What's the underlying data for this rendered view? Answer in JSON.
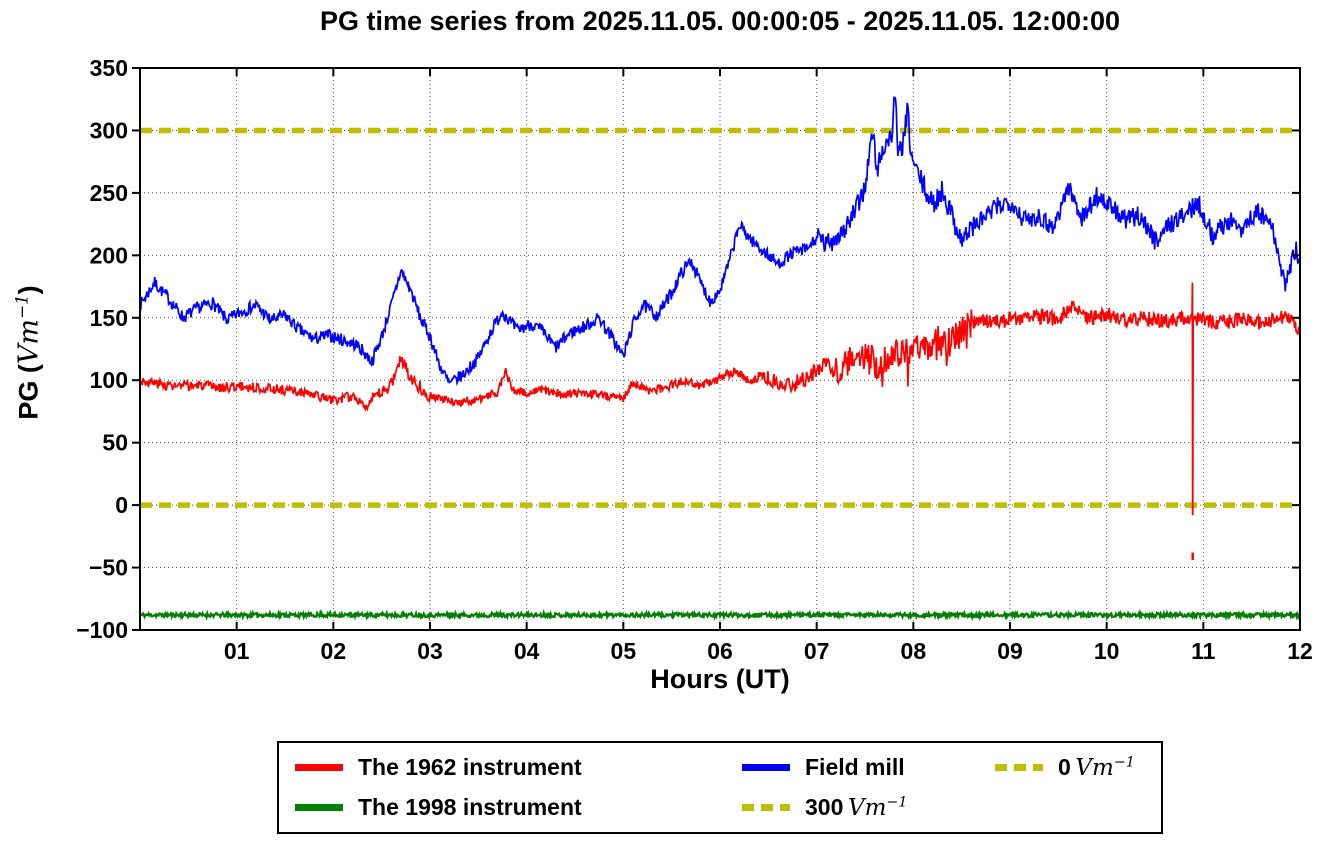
{
  "title": "PG time series from 2025.11.05. 00:00:05 - 2025.11.05. 12:00:00",
  "axes": {
    "xlabel": "Hours (UT)",
    "ylabel_prefix": "PG (",
    "ylabel_unit": "Vm",
    "ylabel_sup": "−1",
    "ylabel_suffix": ")",
    "xtick_labels": [
      "01",
      "02",
      "03",
      "04",
      "05",
      "06",
      "07",
      "08",
      "09",
      "10",
      "11",
      "12"
    ],
    "xtick_values": [
      1,
      2,
      3,
      4,
      5,
      6,
      7,
      8,
      9,
      10,
      11,
      12
    ],
    "ytick_labels": [
      "350",
      "300",
      "250",
      "200",
      "150",
      "100",
      "50",
      "0",
      "−50",
      "−100"
    ],
    "ytick_values": [
      350,
      300,
      250,
      200,
      150,
      100,
      50,
      0,
      -50,
      -100
    ]
  },
  "legend": {
    "entries": [
      {
        "label": "The 1962 instrument",
        "color": "#ff0000",
        "dash": false
      },
      {
        "label": "Field mill",
        "color": "#0000ff",
        "dash": false
      },
      {
        "label_num": "0",
        "label_unit": "Vm",
        "label_sup": "−1",
        "color": "#bfbf00",
        "dash": true
      },
      {
        "label": "The 1998 instrument",
        "color": "#008000",
        "dash": false
      },
      {
        "label_num": "300",
        "label_unit": "Vm",
        "label_sup": "−1",
        "color": "#bfbf00",
        "dash": true
      }
    ]
  },
  "chart_data": {
    "type": "line",
    "title": "PG time series from 2025.11.05. 00:00:05 - 2025.11.05. 12:00:00",
    "xlabel": "Hours (UT)",
    "ylabel": "PG (Vm^-1)",
    "xlim": [
      0,
      12
    ],
    "ylim": [
      -100,
      350
    ],
    "grid": true,
    "legend_position": "below",
    "ref_lines": [
      {
        "label": "300 Vm^-1",
        "value": 300,
        "color": "#bfbf00",
        "width": 5.5,
        "dash": [
          12,
          7
        ]
      },
      {
        "label": "0 Vm^-1",
        "value": 0,
        "color": "#bfbf00",
        "width": 5.5,
        "dash": [
          12,
          7
        ]
      }
    ],
    "series": [
      {
        "name": "Field mill",
        "color": "#0000ff",
        "width": 1.7,
        "seed": 7,
        "anchors": {
          "h": [
            0,
            0.15,
            0.3,
            0.45,
            0.6,
            0.75,
            0.9,
            1.05,
            1.2,
            1.35,
            1.5,
            1.65,
            1.8,
            1.95,
            2.1,
            2.25,
            2.4,
            2.5,
            2.6,
            2.7,
            2.8,
            2.9,
            3.0,
            3.1,
            3.2,
            3.35,
            3.5,
            3.65,
            3.75,
            3.9,
            4.05,
            4.15,
            4.3,
            4.45,
            4.6,
            4.75,
            4.9,
            5.0,
            5.1,
            5.2,
            5.35,
            5.5,
            5.6,
            5.7,
            5.8,
            5.9,
            6.0,
            6.1,
            6.2,
            6.35,
            6.5,
            6.6,
            6.75,
            6.9,
            7.0,
            7.1,
            7.2,
            7.3,
            7.4,
            7.5,
            7.58,
            7.62,
            7.7,
            7.78,
            7.81,
            7.84,
            7.9,
            7.94,
            7.98,
            8.1,
            8.2,
            8.3,
            8.4,
            8.5,
            8.6,
            8.7,
            8.85,
            9.0,
            9.15,
            9.3,
            9.45,
            9.6,
            9.75,
            9.9,
            10.05,
            10.2,
            10.35,
            10.5,
            10.65,
            10.8,
            10.95,
            11.1,
            11.25,
            11.4,
            11.55,
            11.7,
            11.85,
            11.95,
            12.0
          ],
          "v": [
            160,
            178,
            165,
            150,
            158,
            162,
            148,
            155,
            160,
            148,
            152,
            140,
            133,
            136,
            132,
            128,
            115,
            135,
            160,
            188,
            172,
            150,
            135,
            112,
            97,
            105,
            118,
            142,
            155,
            140,
            145,
            140,
            126,
            138,
            143,
            150,
            132,
            119,
            145,
            160,
            152,
            170,
            186,
            196,
            178,
            163,
            172,
            196,
            224,
            210,
            200,
            193,
            202,
            205,
            214,
            208,
            215,
            222,
            235,
            255,
            300,
            268,
            288,
            296,
            336,
            278,
            292,
            316,
            278,
            256,
            240,
            252,
            232,
            212,
            222,
            228,
            238,
            244,
            228,
            232,
            222,
            255,
            230,
            248,
            238,
            228,
            232,
            212,
            225,
            232,
            242,
            215,
            228,
            222,
            235,
            225,
            175,
            205,
            195
          ]
        },
        "noise": [
          {
            "from": 0,
            "to": 7,
            "amp": 5
          },
          {
            "from": 7,
            "to": 8.6,
            "amp": 9
          },
          {
            "from": 8.6,
            "to": 12,
            "amp": 8
          }
        ]
      },
      {
        "name": "The 1962 instrument",
        "color": "#ff0000",
        "width": 1.7,
        "seed": 3,
        "anchors": {
          "h": [
            0,
            0.2,
            0.4,
            0.6,
            0.8,
            1.0,
            1.2,
            1.4,
            1.6,
            1.8,
            2.0,
            2.2,
            2.35,
            2.5,
            2.6,
            2.7,
            2.8,
            2.95,
            3.1,
            3.3,
            3.5,
            3.7,
            3.78,
            3.85,
            4.0,
            4.2,
            4.4,
            4.6,
            4.8,
            5.0,
            5.1,
            5.25,
            5.4,
            5.6,
            5.8,
            6.0,
            6.15,
            6.3,
            6.45,
            6.6,
            6.75,
            6.9,
            7.05,
            7.2,
            7.35,
            7.5,
            7.65,
            7.8,
            7.95,
            8.1,
            8.25,
            8.4,
            8.55,
            8.7,
            8.9,
            9.1,
            9.3,
            9.5,
            9.65,
            9.8,
            10.0,
            10.2,
            10.4,
            10.6,
            10.8,
            11.0,
            11.2,
            11.4,
            11.6,
            11.8,
            11.9,
            12.0
          ],
          "v": [
            100,
            97,
            95,
            96,
            94,
            95,
            94,
            93,
            91,
            88,
            84,
            87,
            80,
            90,
            97,
            118,
            103,
            90,
            85,
            82,
            85,
            90,
            108,
            92,
            90,
            92,
            88,
            90,
            88,
            86,
            98,
            92,
            93,
            99,
            96,
            101,
            107,
            99,
            104,
            99,
            96,
            102,
            112,
            108,
            114,
            118,
            113,
            121,
            126,
            122,
            133,
            130,
            143,
            148,
            147,
            150,
            151,
            149,
            160,
            150,
            153,
            148,
            150,
            147,
            150,
            148,
            146,
            150,
            145,
            150,
            148,
            135
          ]
        },
        "noise": [
          {
            "from": 0,
            "to": 2.4,
            "amp": 4
          },
          {
            "from": 2.4,
            "to": 3.0,
            "amp": 5.5
          },
          {
            "from": 3.0,
            "to": 6.4,
            "amp": 3.5
          },
          {
            "from": 6.4,
            "to": 7.2,
            "amp": 7
          },
          {
            "from": 7.2,
            "to": 8.6,
            "amp": 13
          },
          {
            "from": 8.6,
            "to": 12,
            "amp": 6
          }
        ],
        "spike_chance": {
          "from": 7.2,
          "to": 8.6,
          "p": 0.06,
          "mult": 1.5
        }
      },
      {
        "name": "The 1998 instrument",
        "color": "#008000",
        "width": 2.3,
        "seed": 11,
        "constant": -88,
        "noise": [
          {
            "from": 0,
            "to": 12,
            "amp": 1.6
          }
        ]
      }
    ],
    "events": [
      {
        "series": "The 1962 instrument",
        "hour": 10.89,
        "peak": 178,
        "trough": -8,
        "isolated_dot": -41
      }
    ]
  }
}
